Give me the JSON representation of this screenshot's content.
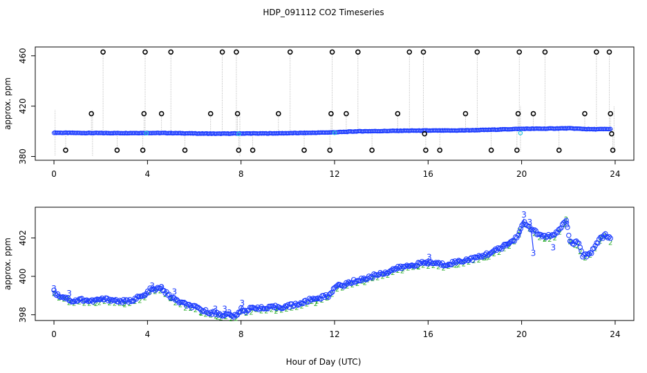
{
  "figure": {
    "title": "HDP_091112  CO2 Timeseries",
    "xlabel": "Hour of Day (UTC)"
  },
  "chart_data": [
    {
      "type": "scatter",
      "name": "top-panel",
      "ylabel": "approx. ppm",
      "xlim": [
        -0.8,
        24.8
      ],
      "ylim": [
        377,
        467
      ],
      "xticks": [
        0,
        4,
        8,
        12,
        16,
        20,
        24
      ],
      "yticks": [
        380,
        420,
        460
      ],
      "baseline": {
        "x": [
          0,
          1,
          2,
          3,
          4,
          5,
          6,
          7,
          8,
          9,
          10,
          11,
          12,
          13,
          14,
          15,
          16,
          17,
          18,
          19,
          20,
          21,
          22,
          23,
          23.8
        ],
        "y": [
          398.9,
          398.7,
          398.6,
          398.6,
          398.7,
          398.6,
          398.3,
          398.1,
          398.3,
          398.3,
          398.5,
          398.8,
          399.2,
          400.0,
          400.2,
          400.5,
          400.6,
          400.6,
          400.9,
          401.4,
          402.0,
          402.1,
          402.4,
          401.6,
          401.8
        ]
      },
      "outliers": [
        {
          "x": 0.5,
          "y": 385
        },
        {
          "x": 1.6,
          "y": 414
        },
        {
          "x": 2.1,
          "y": 463
        },
        {
          "x": 2.7,
          "y": 385
        },
        {
          "x": 3.8,
          "y": 385
        },
        {
          "x": 3.85,
          "y": 414
        },
        {
          "x": 3.9,
          "y": 463
        },
        {
          "x": 4.6,
          "y": 414
        },
        {
          "x": 5.0,
          "y": 463
        },
        {
          "x": 5.6,
          "y": 385
        },
        {
          "x": 6.7,
          "y": 414
        },
        {
          "x": 7.2,
          "y": 463
        },
        {
          "x": 7.8,
          "y": 463
        },
        {
          "x": 7.85,
          "y": 414
        },
        {
          "x": 7.9,
          "y": 385
        },
        {
          "x": 8.5,
          "y": 385
        },
        {
          "x": 9.6,
          "y": 414
        },
        {
          "x": 10.1,
          "y": 463
        },
        {
          "x": 10.7,
          "y": 385
        },
        {
          "x": 11.8,
          "y": 385
        },
        {
          "x": 11.85,
          "y": 414
        },
        {
          "x": 11.9,
          "y": 463
        },
        {
          "x": 12.5,
          "y": 414
        },
        {
          "x": 13.0,
          "y": 463
        },
        {
          "x": 13.6,
          "y": 385
        },
        {
          "x": 14.7,
          "y": 414
        },
        {
          "x": 15.2,
          "y": 463
        },
        {
          "x": 15.8,
          "y": 463
        },
        {
          "x": 15.85,
          "y": 398
        },
        {
          "x": 15.9,
          "y": 385
        },
        {
          "x": 16.5,
          "y": 385
        },
        {
          "x": 17.6,
          "y": 414
        },
        {
          "x": 18.1,
          "y": 463
        },
        {
          "x": 18.7,
          "y": 385
        },
        {
          "x": 19.8,
          "y": 385
        },
        {
          "x": 19.85,
          "y": 414
        },
        {
          "x": 19.9,
          "y": 463
        },
        {
          "x": 20.5,
          "y": 414
        },
        {
          "x": 21.0,
          "y": 463
        },
        {
          "x": 21.6,
          "y": 385
        },
        {
          "x": 22.7,
          "y": 414
        },
        {
          "x": 23.2,
          "y": 463
        },
        {
          "x": 23.75,
          "y": 463
        },
        {
          "x": 23.8,
          "y": 414
        },
        {
          "x": 23.85,
          "y": 398
        },
        {
          "x": 23.9,
          "y": 385
        }
      ],
      "cyan_markers": [
        {
          "x": 3.95,
          "y": 398.5
        },
        {
          "x": 7.9,
          "y": 398.0
        },
        {
          "x": 12.0,
          "y": 398.8
        },
        {
          "x": 19.95,
          "y": 398.6
        }
      ]
    },
    {
      "type": "line",
      "name": "bottom-panel",
      "ylabel": "approx. ppm",
      "xlim": [
        -0.8,
        24.8
      ],
      "ylim": [
        397.7,
        403.6
      ],
      "xticks": [
        0,
        4,
        8,
        12,
        16,
        20,
        24
      ],
      "yticks": [
        398,
        400,
        402
      ],
      "series": {
        "x": [
          0,
          0.2,
          0.5,
          0.8,
          1.2,
          1.6,
          2.0,
          2.4,
          2.8,
          3.2,
          3.6,
          3.9,
          4.1,
          4.3,
          4.6,
          4.9,
          5.3,
          5.7,
          6.0,
          6.4,
          6.8,
          7.2,
          7.5,
          7.8,
          8.0,
          8.2,
          8.6,
          9.0,
          9.4,
          9.8,
          10.2,
          10.6,
          11.0,
          11.4,
          11.8,
          12.0,
          12.3,
          12.7,
          13.0,
          13.4,
          13.8,
          14.2,
          14.6,
          15.0,
          15.4,
          15.8,
          16.0,
          16.3,
          16.7,
          17.0,
          17.4,
          17.8,
          18.2,
          18.6,
          19.0,
          19.4,
          19.7,
          19.9,
          20.1,
          20.3,
          20.5,
          20.8,
          21.1,
          21.4,
          21.7,
          21.9,
          22.1,
          22.4,
          22.6,
          22.8,
          23.0,
          23.3,
          23.6,
          23.8
        ],
        "y": [
          399.2,
          399.0,
          398.9,
          398.7,
          398.8,
          398.7,
          398.8,
          398.8,
          398.7,
          398.7,
          398.9,
          399.0,
          399.3,
          399.3,
          399.4,
          399.0,
          398.7,
          398.5,
          398.4,
          398.2,
          398.1,
          398.0,
          398.0,
          397.9,
          398.3,
          398.2,
          398.4,
          398.3,
          398.4,
          398.4,
          398.5,
          398.6,
          398.8,
          398.9,
          399.0,
          399.5,
          399.5,
          399.7,
          399.8,
          399.9,
          400.1,
          400.2,
          400.4,
          400.5,
          400.6,
          400.7,
          400.7,
          400.7,
          400.6,
          400.7,
          400.8,
          400.9,
          401.0,
          401.2,
          401.4,
          401.7,
          401.9,
          402.3,
          402.8,
          402.6,
          402.4,
          402.1,
          402.1,
          402.1,
          402.6,
          402.9,
          401.7,
          401.8,
          401.1,
          401.1,
          401.3,
          401.9,
          402.2,
          401.9
        ]
      },
      "green_labels": [
        {
          "x": 0.6,
          "y": 398.9,
          "text": "2"
        },
        {
          "x": 1.8,
          "y": 398.6,
          "text": "2"
        },
        {
          "x": 3.0,
          "y": 398.6,
          "text": "2"
        },
        {
          "x": 5.0,
          "y": 398.9,
          "text": "2"
        },
        {
          "x": 6.3,
          "y": 398.1,
          "text": "2"
        },
        {
          "x": 7.0,
          "y": 397.9,
          "text": "2"
        },
        {
          "x": 9.5,
          "y": 398.2,
          "text": "2"
        },
        {
          "x": 11.2,
          "y": 398.6,
          "text": "2"
        },
        {
          "x": 13.3,
          "y": 399.7,
          "text": "2"
        },
        {
          "x": 14.9,
          "y": 400.3,
          "text": "2"
        },
        {
          "x": 15.6,
          "y": 400.5,
          "text": "2"
        },
        {
          "x": 17.2,
          "y": 400.6,
          "text": "2"
        },
        {
          "x": 18.5,
          "y": 401.0,
          "text": "2"
        },
        {
          "x": 19.9,
          "y": 402.4,
          "text": "2"
        },
        {
          "x": 21.0,
          "y": 402.0,
          "text": "2"
        },
        {
          "x": 21.9,
          "y": 403.0,
          "text": "2"
        },
        {
          "x": 22.4,
          "y": 401.6,
          "text": "2"
        },
        {
          "x": 23.4,
          "y": 402.0,
          "text": "2"
        }
      ],
      "blue_labels": [
        {
          "x": 0.0,
          "y": 399.35,
          "text": "3"
        },
        {
          "x": 0.65,
          "y": 399.1,
          "text": "3"
        },
        {
          "x": 4.2,
          "y": 399.5,
          "text": "3"
        },
        {
          "x": 4.6,
          "y": 399.4,
          "text": "3"
        },
        {
          "x": 5.15,
          "y": 399.2,
          "text": "3"
        },
        {
          "x": 6.9,
          "y": 398.3,
          "text": "3"
        },
        {
          "x": 7.3,
          "y": 398.3,
          "text": "3"
        },
        {
          "x": 7.5,
          "y": 398.1,
          "text": "3"
        },
        {
          "x": 8.05,
          "y": 398.6,
          "text": "3"
        },
        {
          "x": 16.05,
          "y": 401.0,
          "text": "3"
        },
        {
          "x": 19.35,
          "y": 401.6,
          "text": "3"
        },
        {
          "x": 20.1,
          "y": 403.2,
          "text": "3"
        },
        {
          "x": 20.35,
          "y": 402.8,
          "text": "3"
        },
        {
          "x": 20.5,
          "y": 401.2,
          "text": "3"
        },
        {
          "x": 21.35,
          "y": 401.5,
          "text": "3"
        },
        {
          "x": 21.95,
          "y": 402.7,
          "text": "3"
        }
      ],
      "jump_segments": [
        {
          "x1": 7.8,
          "y1": 397.95,
          "x2": 8.05,
          "y2": 398.45
        },
        {
          "x1": 15.8,
          "y1": 400.75,
          "x2": 16.05,
          "y2": 400.95
        },
        {
          "x1": 19.9,
          "y1": 402.1,
          "x2": 20.1,
          "y2": 403.0
        },
        {
          "x1": 20.4,
          "y1": 402.5,
          "x2": 20.5,
          "y2": 401.4
        }
      ]
    }
  ]
}
